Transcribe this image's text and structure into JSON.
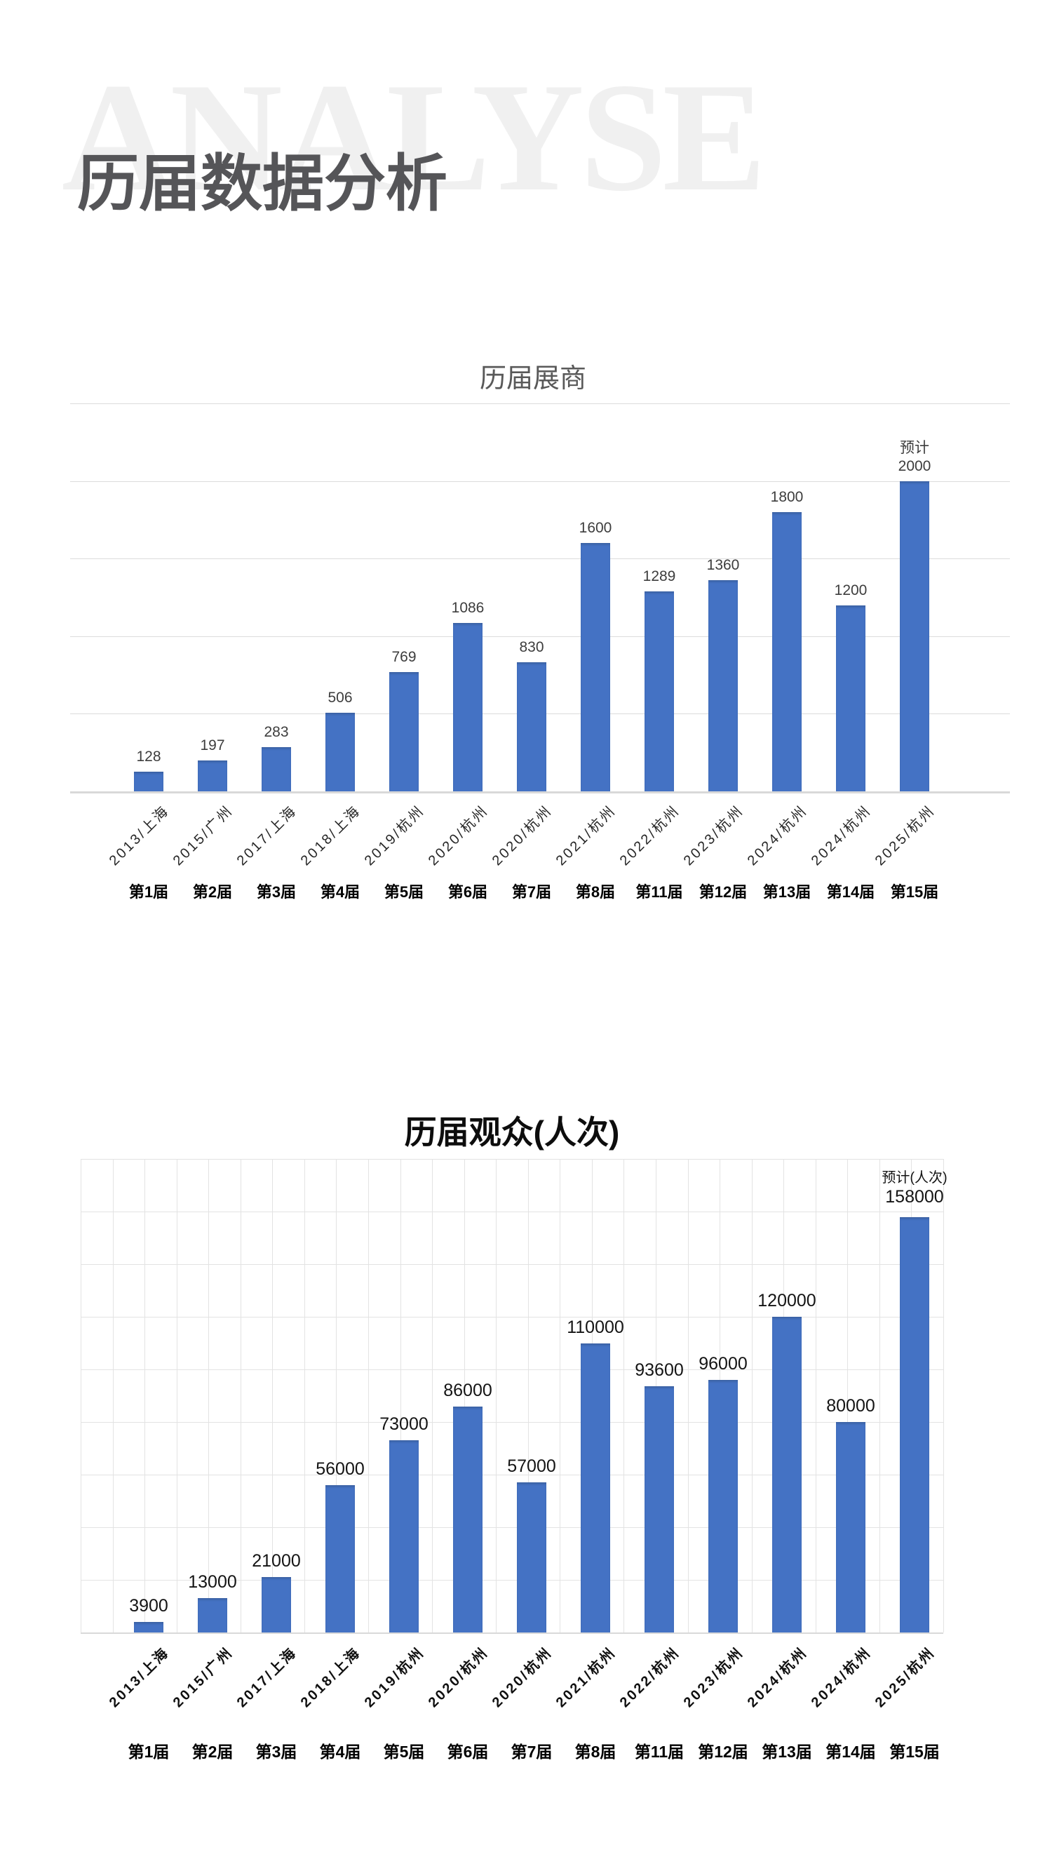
{
  "page": {
    "watermark": "ANALYSE",
    "title": "历届数据分析"
  },
  "chart_data": [
    {
      "type": "bar",
      "title": "历届展商",
      "categories": [
        "2013/上海",
        "2015/广州",
        "2017/上海",
        "2018/上海",
        "2019/杭州",
        "2020/杭州",
        "2020/杭州",
        "2021/杭州",
        "2022/杭州",
        "2023/杭州",
        "2024/杭州",
        "2024/杭州",
        "2025/杭州"
      ],
      "editions": [
        "第1届",
        "第2届",
        "第3届",
        "第4届",
        "第5届",
        "第6届",
        "第7届",
        "第8届",
        "第11届",
        "第12届",
        "第13届",
        "第14届",
        "第15届"
      ],
      "values": [
        128,
        197,
        283,
        506,
        769,
        1086,
        830,
        1600,
        1289,
        1360,
        1800,
        1200,
        2000
      ],
      "last_value_prefix": "预计",
      "xlabel": "",
      "ylabel": "",
      "ylim": [
        0,
        2500
      ],
      "grid_step": 500,
      "grid": "horizontal",
      "legend": "none",
      "bar_color": "#4472C4",
      "gridline_color": "#DCDCDC"
    },
    {
      "type": "bar",
      "title": "历届观众(人次)",
      "categories": [
        "2013/上海",
        "2015/广州",
        "2017/上海",
        "2018/上海",
        "2019/杭州",
        "2020/杭州",
        "2020/杭州",
        "2021/杭州",
        "2022/杭州",
        "2023/杭州",
        "2024/杭州",
        "2024/杭州",
        "2025/杭州"
      ],
      "editions": [
        "第1届",
        "第2届",
        "第3届",
        "第4届",
        "第5届",
        "第6届",
        "第7届",
        "第8届",
        "第11届",
        "第12届",
        "第13届",
        "第14届",
        "第15届"
      ],
      "values": [
        3900,
        13000,
        21000,
        56000,
        73000,
        86000,
        57000,
        110000,
        93600,
        96000,
        120000,
        80000,
        158000
      ],
      "last_value_prefix": "预计(人次)",
      "xlabel": "",
      "ylabel": "",
      "ylim": [
        0,
        180000
      ],
      "grid_step": 20000,
      "grid": "both",
      "legend": "none",
      "bar_color": "#4472C4",
      "gridline_color": "#E3E3E3"
    }
  ]
}
